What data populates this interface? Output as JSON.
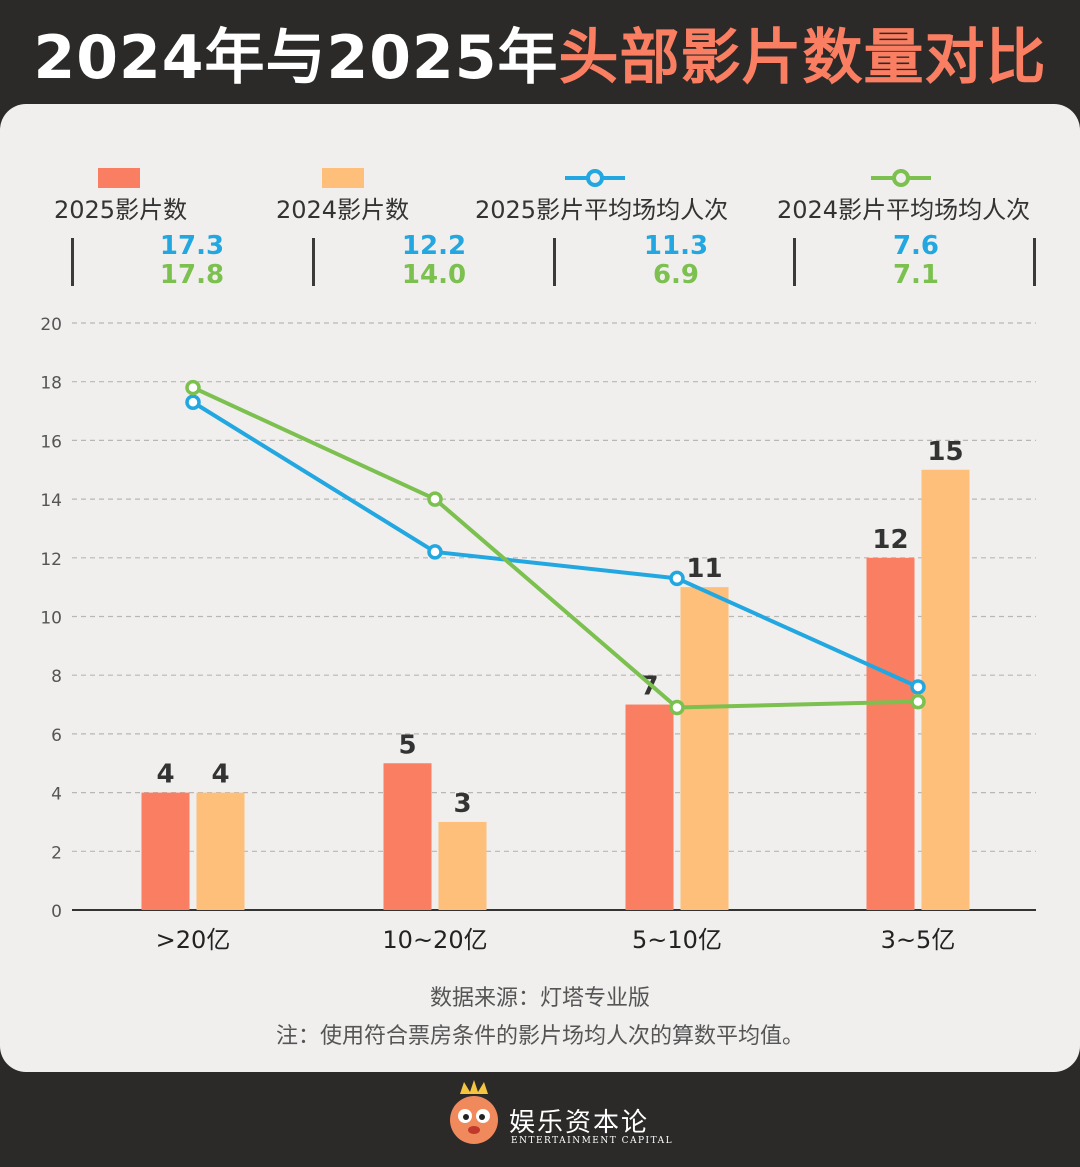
{
  "header": {
    "title_part1": "2024年与2025年",
    "title_part2": "头部影片数量对比"
  },
  "legend": [
    {
      "label": "2025影片数",
      "color": "#fa7e62",
      "kind": "bar"
    },
    {
      "label": "2024影片数",
      "color": "#fdbf7a",
      "kind": "bar"
    },
    {
      "label": "2025影片平均场均人次",
      "color": "#22a7e0",
      "kind": "line"
    },
    {
      "label": "2024影片平均场均人次",
      "color": "#7cc04f",
      "kind": "line"
    }
  ],
  "value_row": [
    {
      "v2025": "17.3",
      "v2024": "17.8"
    },
    {
      "v2025": "12.2",
      "v2024": "14.0"
    },
    {
      "v2025": "11.3",
      "v2024": "6.9"
    },
    {
      "v2025": "7.6",
      "v2024": "7.1"
    }
  ],
  "chart_data": {
    "type": "bar",
    "categories": [
      ">20亿",
      "10~20亿",
      "5~10亿",
      "3~5亿"
    ],
    "series": [
      {
        "name": "2025影片数",
        "kind": "bar",
        "color": "#fa7e62",
        "values": [
          4,
          5,
          7,
          12
        ]
      },
      {
        "name": "2024影片数",
        "kind": "bar",
        "color": "#fdbf7a",
        "values": [
          4,
          3,
          11,
          15
        ]
      },
      {
        "name": "2025影片平均场均人次",
        "kind": "line",
        "color": "#22a7e0",
        "values": [
          17.3,
          12.2,
          11.3,
          7.6
        ]
      },
      {
        "name": "2024影片平均场均人次",
        "kind": "line",
        "color": "#7cc04f",
        "values": [
          17.8,
          14.0,
          6.9,
          7.1
        ]
      }
    ],
    "ylim": [
      0,
      20
    ],
    "yticks": [
      0,
      2,
      4,
      6,
      8,
      10,
      12,
      14,
      16,
      18,
      20
    ],
    "grid": true,
    "legend_position": "top"
  },
  "source": "数据来源：灯塔专业版",
  "note": "注：使用符合票房条件的影片场均人次的算数平均值。",
  "brand": {
    "name_cn": "娱乐资本论",
    "name_en": "ENTERTAINMENT CAPITAL"
  }
}
